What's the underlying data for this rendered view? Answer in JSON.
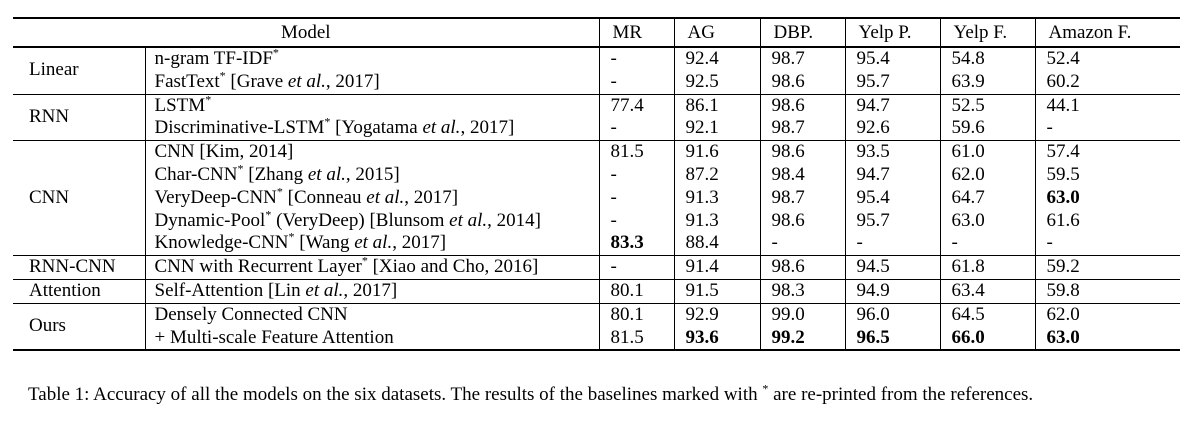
{
  "table": {
    "star_char": "*",
    "header": {
      "model": "Model",
      "datasets": [
        "MR",
        "AG",
        "DBP.",
        "Yelp P.",
        "Yelp F.",
        "Amazon F."
      ]
    },
    "groups": [
      {
        "label": "Linear",
        "rows": [
          {
            "name": "n-gram TF-IDF",
            "star": true,
            "values": [
              "-",
              "92.4",
              "98.7",
              "95.4",
              "54.8",
              "52.4"
            ],
            "bold": []
          },
          {
            "name": "FastText",
            "star": true,
            "cite": {
              "pre": "[Grave ",
              "italic": "et al.",
              "post": ", 2017]"
            },
            "values": [
              "-",
              "92.5",
              "98.6",
              "95.7",
              "63.9",
              "60.2"
            ],
            "bold": []
          }
        ]
      },
      {
        "label": "RNN",
        "rows": [
          {
            "name": "LSTM",
            "star": true,
            "values": [
              "77.4",
              "86.1",
              "98.6",
              "94.7",
              "52.5",
              "44.1"
            ],
            "bold": []
          },
          {
            "name": "Discriminative-LSTM",
            "star": true,
            "cite": {
              "pre": "[Yogatama ",
              "italic": "et al.",
              "post": ", 2017]"
            },
            "values": [
              "-",
              "92.1",
              "98.7",
              "92.6",
              "59.6",
              "-"
            ],
            "bold": []
          }
        ]
      },
      {
        "label": "CNN",
        "rows": [
          {
            "name": "CNN",
            "star": false,
            "cite": {
              "pre": "[Kim, 2014]",
              "italic": "",
              "post": ""
            },
            "values": [
              "81.5",
              "91.6",
              "98.6",
              "93.5",
              "61.0",
              "57.4"
            ],
            "bold": []
          },
          {
            "name": "Char-CNN",
            "star": true,
            "cite": {
              "pre": "[Zhang ",
              "italic": "et al.",
              "post": ", 2015]"
            },
            "values": [
              "-",
              "87.2",
              "98.4",
              "94.7",
              "62.0",
              "59.5"
            ],
            "bold": []
          },
          {
            "name": "VeryDeep-CNN",
            "star": true,
            "cite": {
              "pre": "[Conneau ",
              "italic": "et al.",
              "post": ", 2017]"
            },
            "values": [
              "-",
              "91.3",
              "98.7",
              "95.4",
              "64.7",
              "63.0"
            ],
            "bold": [
              5
            ]
          },
          {
            "name": "Dynamic-Pool",
            "star": true,
            "after_star": " (VeryDeep) ",
            "cite": {
              "pre": "[Blunsom ",
              "italic": "et al.",
              "post": ", 2014]"
            },
            "values": [
              "-",
              "91.3",
              "98.6",
              "95.7",
              "63.0",
              "61.6"
            ],
            "bold": []
          },
          {
            "name": "Knowledge-CNN",
            "star": true,
            "cite": {
              "pre": "[Wang ",
              "italic": "et al.",
              "post": ", 2017]"
            },
            "values": [
              "83.3",
              "88.4",
              "-",
              "-",
              "-",
              "-"
            ],
            "bold": [
              0
            ]
          }
        ]
      },
      {
        "label": "RNN-CNN",
        "rows": [
          {
            "name": "CNN with Recurrent Layer",
            "star": true,
            "cite": {
              "pre": "[Xiao and Cho, 2016]",
              "italic": "",
              "post": ""
            },
            "values": [
              "-",
              "91.4",
              "98.6",
              "94.5",
              "61.8",
              "59.2"
            ],
            "bold": []
          }
        ]
      },
      {
        "label": "Attention",
        "rows": [
          {
            "name": "Self-Attention",
            "star": false,
            "cite": {
              "pre": "[Lin ",
              "italic": "et al.",
              "post": ", 2017]"
            },
            "values": [
              "80.1",
              "91.5",
              "98.3",
              "94.9",
              "63.4",
              "59.8"
            ],
            "bold": []
          }
        ]
      },
      {
        "label": "Ours",
        "rows": [
          {
            "name": "Densely Connected CNN",
            "star": false,
            "values": [
              "80.1",
              "92.9",
              "99.0",
              "96.0",
              "64.5",
              "62.0"
            ],
            "bold": []
          },
          {
            "name": "+ Multi-scale Feature Attention",
            "star": false,
            "values": [
              "81.5",
              "93.6",
              "99.2",
              "96.5",
              "66.0",
              "63.0"
            ],
            "bold": [
              1,
              2,
              3,
              4,
              5
            ]
          }
        ]
      }
    ],
    "caption": {
      "pre": "Table 1: Accuracy of all the models on the six datasets. The results of the baselines marked with ",
      "star": "*",
      "post": " are re-printed from the references."
    }
  }
}
